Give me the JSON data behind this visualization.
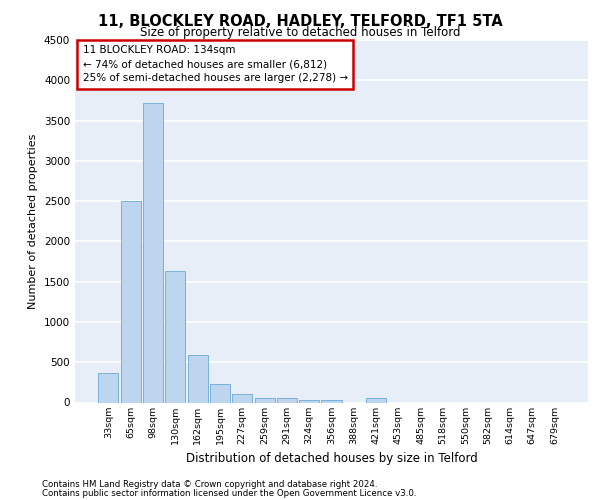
{
  "title": "11, BLOCKLEY ROAD, HADLEY, TELFORD, TF1 5TA",
  "subtitle": "Size of property relative to detached houses in Telford",
  "xlabel": "Distribution of detached houses by size in Telford",
  "ylabel": "Number of detached properties",
  "categories": [
    "33sqm",
    "65sqm",
    "98sqm",
    "130sqm",
    "162sqm",
    "195sqm",
    "227sqm",
    "259sqm",
    "291sqm",
    "324sqm",
    "356sqm",
    "388sqm",
    "421sqm",
    "453sqm",
    "485sqm",
    "518sqm",
    "550sqm",
    "582sqm",
    "614sqm",
    "647sqm",
    "679sqm"
  ],
  "values": [
    370,
    2500,
    3720,
    1630,
    590,
    235,
    110,
    60,
    50,
    30,
    30,
    0,
    60,
    0,
    0,
    0,
    0,
    0,
    0,
    0,
    0
  ],
  "bar_color": "#bdd5ee",
  "bar_edge_color": "#6aaad4",
  "annotation_text": "11 BLOCKLEY ROAD: 134sqm\n← 74% of detached houses are smaller (6,812)\n25% of semi-detached houses are larger (2,278) →",
  "annotation_box_color": "#ffffff",
  "annotation_box_edge_color": "#cc0000",
  "ylim": [
    0,
    4500
  ],
  "yticks": [
    0,
    500,
    1000,
    1500,
    2000,
    2500,
    3000,
    3500,
    4000,
    4500
  ],
  "background_color": "#e8eef8",
  "grid_color": "#ffffff",
  "footer_line1": "Contains HM Land Registry data © Crown copyright and database right 2024.",
  "footer_line2": "Contains public sector information licensed under the Open Government Licence v3.0."
}
